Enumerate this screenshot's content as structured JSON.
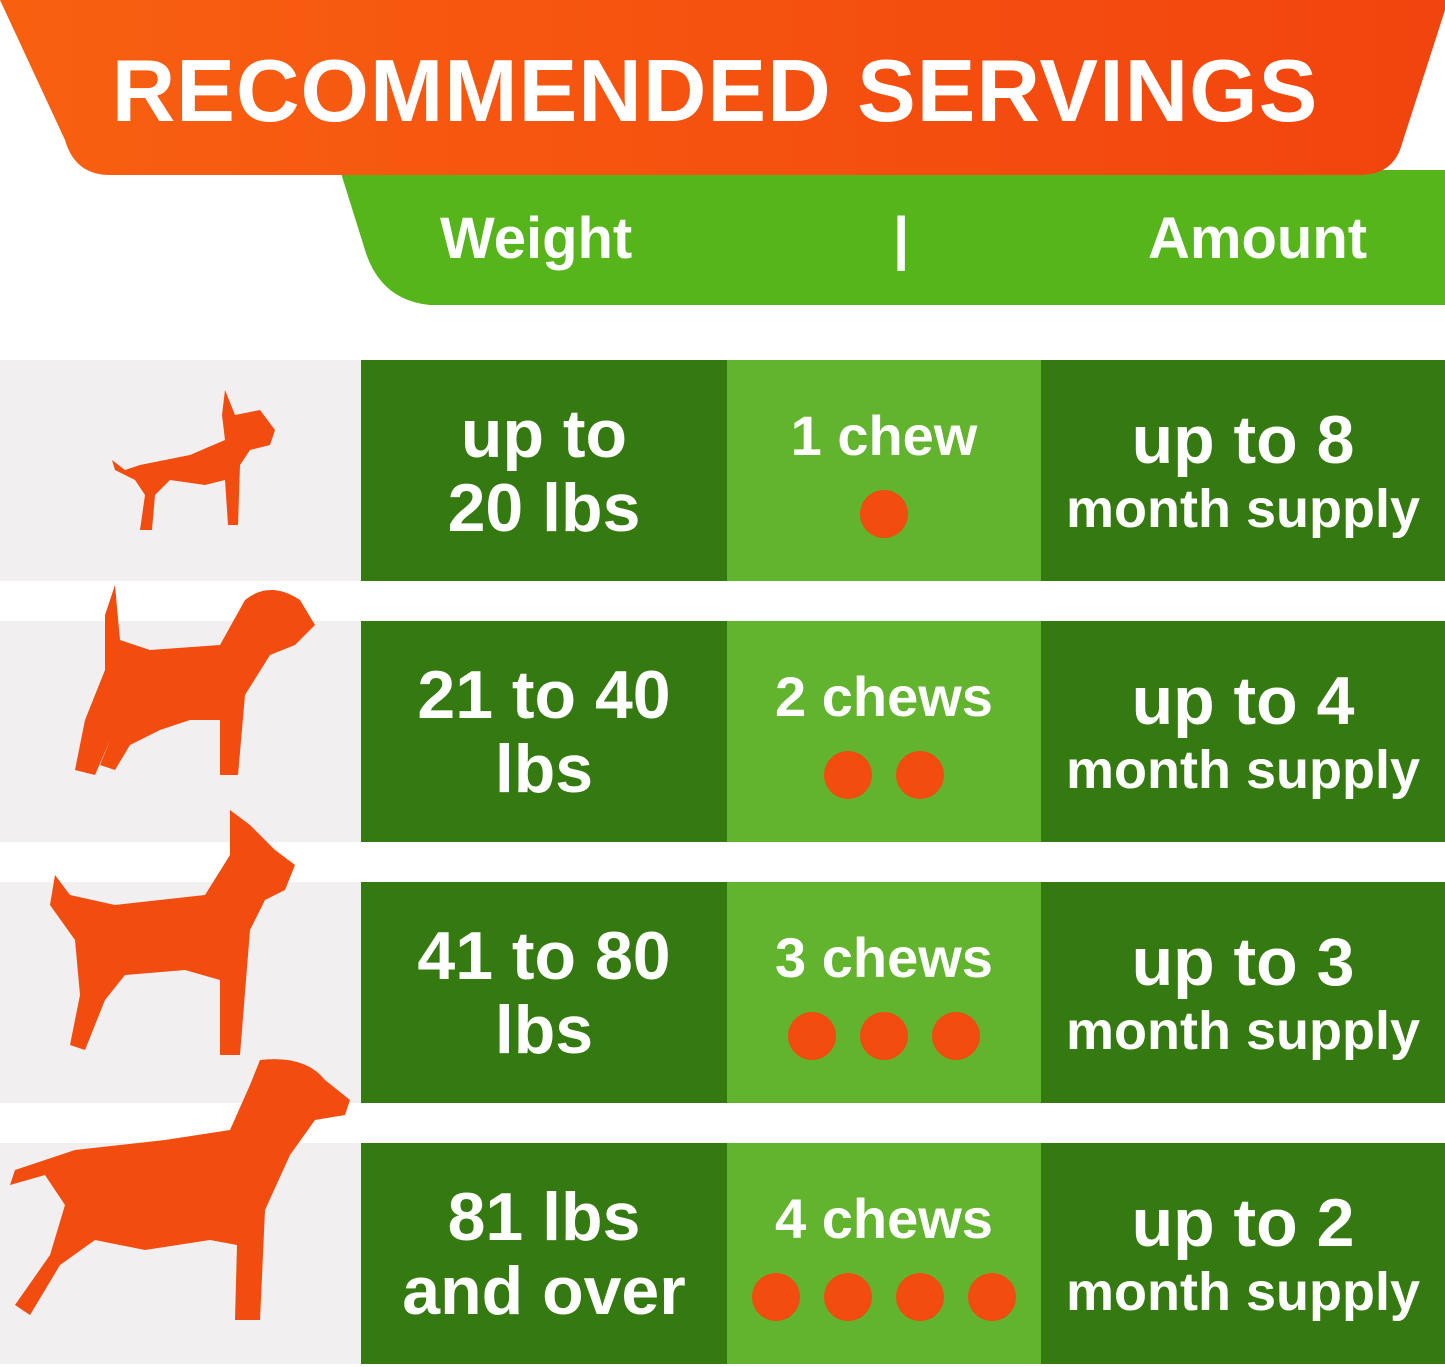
{
  "title": "RECOMMENDED SERVINGS",
  "header": {
    "weight": "Weight",
    "separator": "|",
    "amount": "Amount"
  },
  "colors": {
    "orange": "#f24c0f",
    "green_header": "#55b51b",
    "dark_green": "#357a10",
    "light_green": "#62b32d"
  },
  "rows": [
    {
      "icon": "small-dog-icon",
      "weight_line1": "up to",
      "weight_line2": "20 lbs",
      "chews_label": "1 chew",
      "chews": 1,
      "amount_line1": "up to 8",
      "amount_line2": "month supply"
    },
    {
      "icon": "beagle-icon",
      "weight_line1": "21 to 40",
      "weight_line2": "lbs",
      "chews_label": "2 chews",
      "chews": 2,
      "amount_line1": "up to 4",
      "amount_line2": "month supply"
    },
    {
      "icon": "terrier-icon",
      "weight_line1": "41 to 80",
      "weight_line2": "lbs",
      "chews_label": "3 chews",
      "chews": 3,
      "amount_line1": "up to 3",
      "amount_line2": "month supply"
    },
    {
      "icon": "large-dog-icon",
      "weight_line1": "81 lbs",
      "weight_line2": "and over",
      "chews_label": "4 chews",
      "chews": 4,
      "amount_line1": "up to 2",
      "amount_line2": "month supply"
    }
  ]
}
